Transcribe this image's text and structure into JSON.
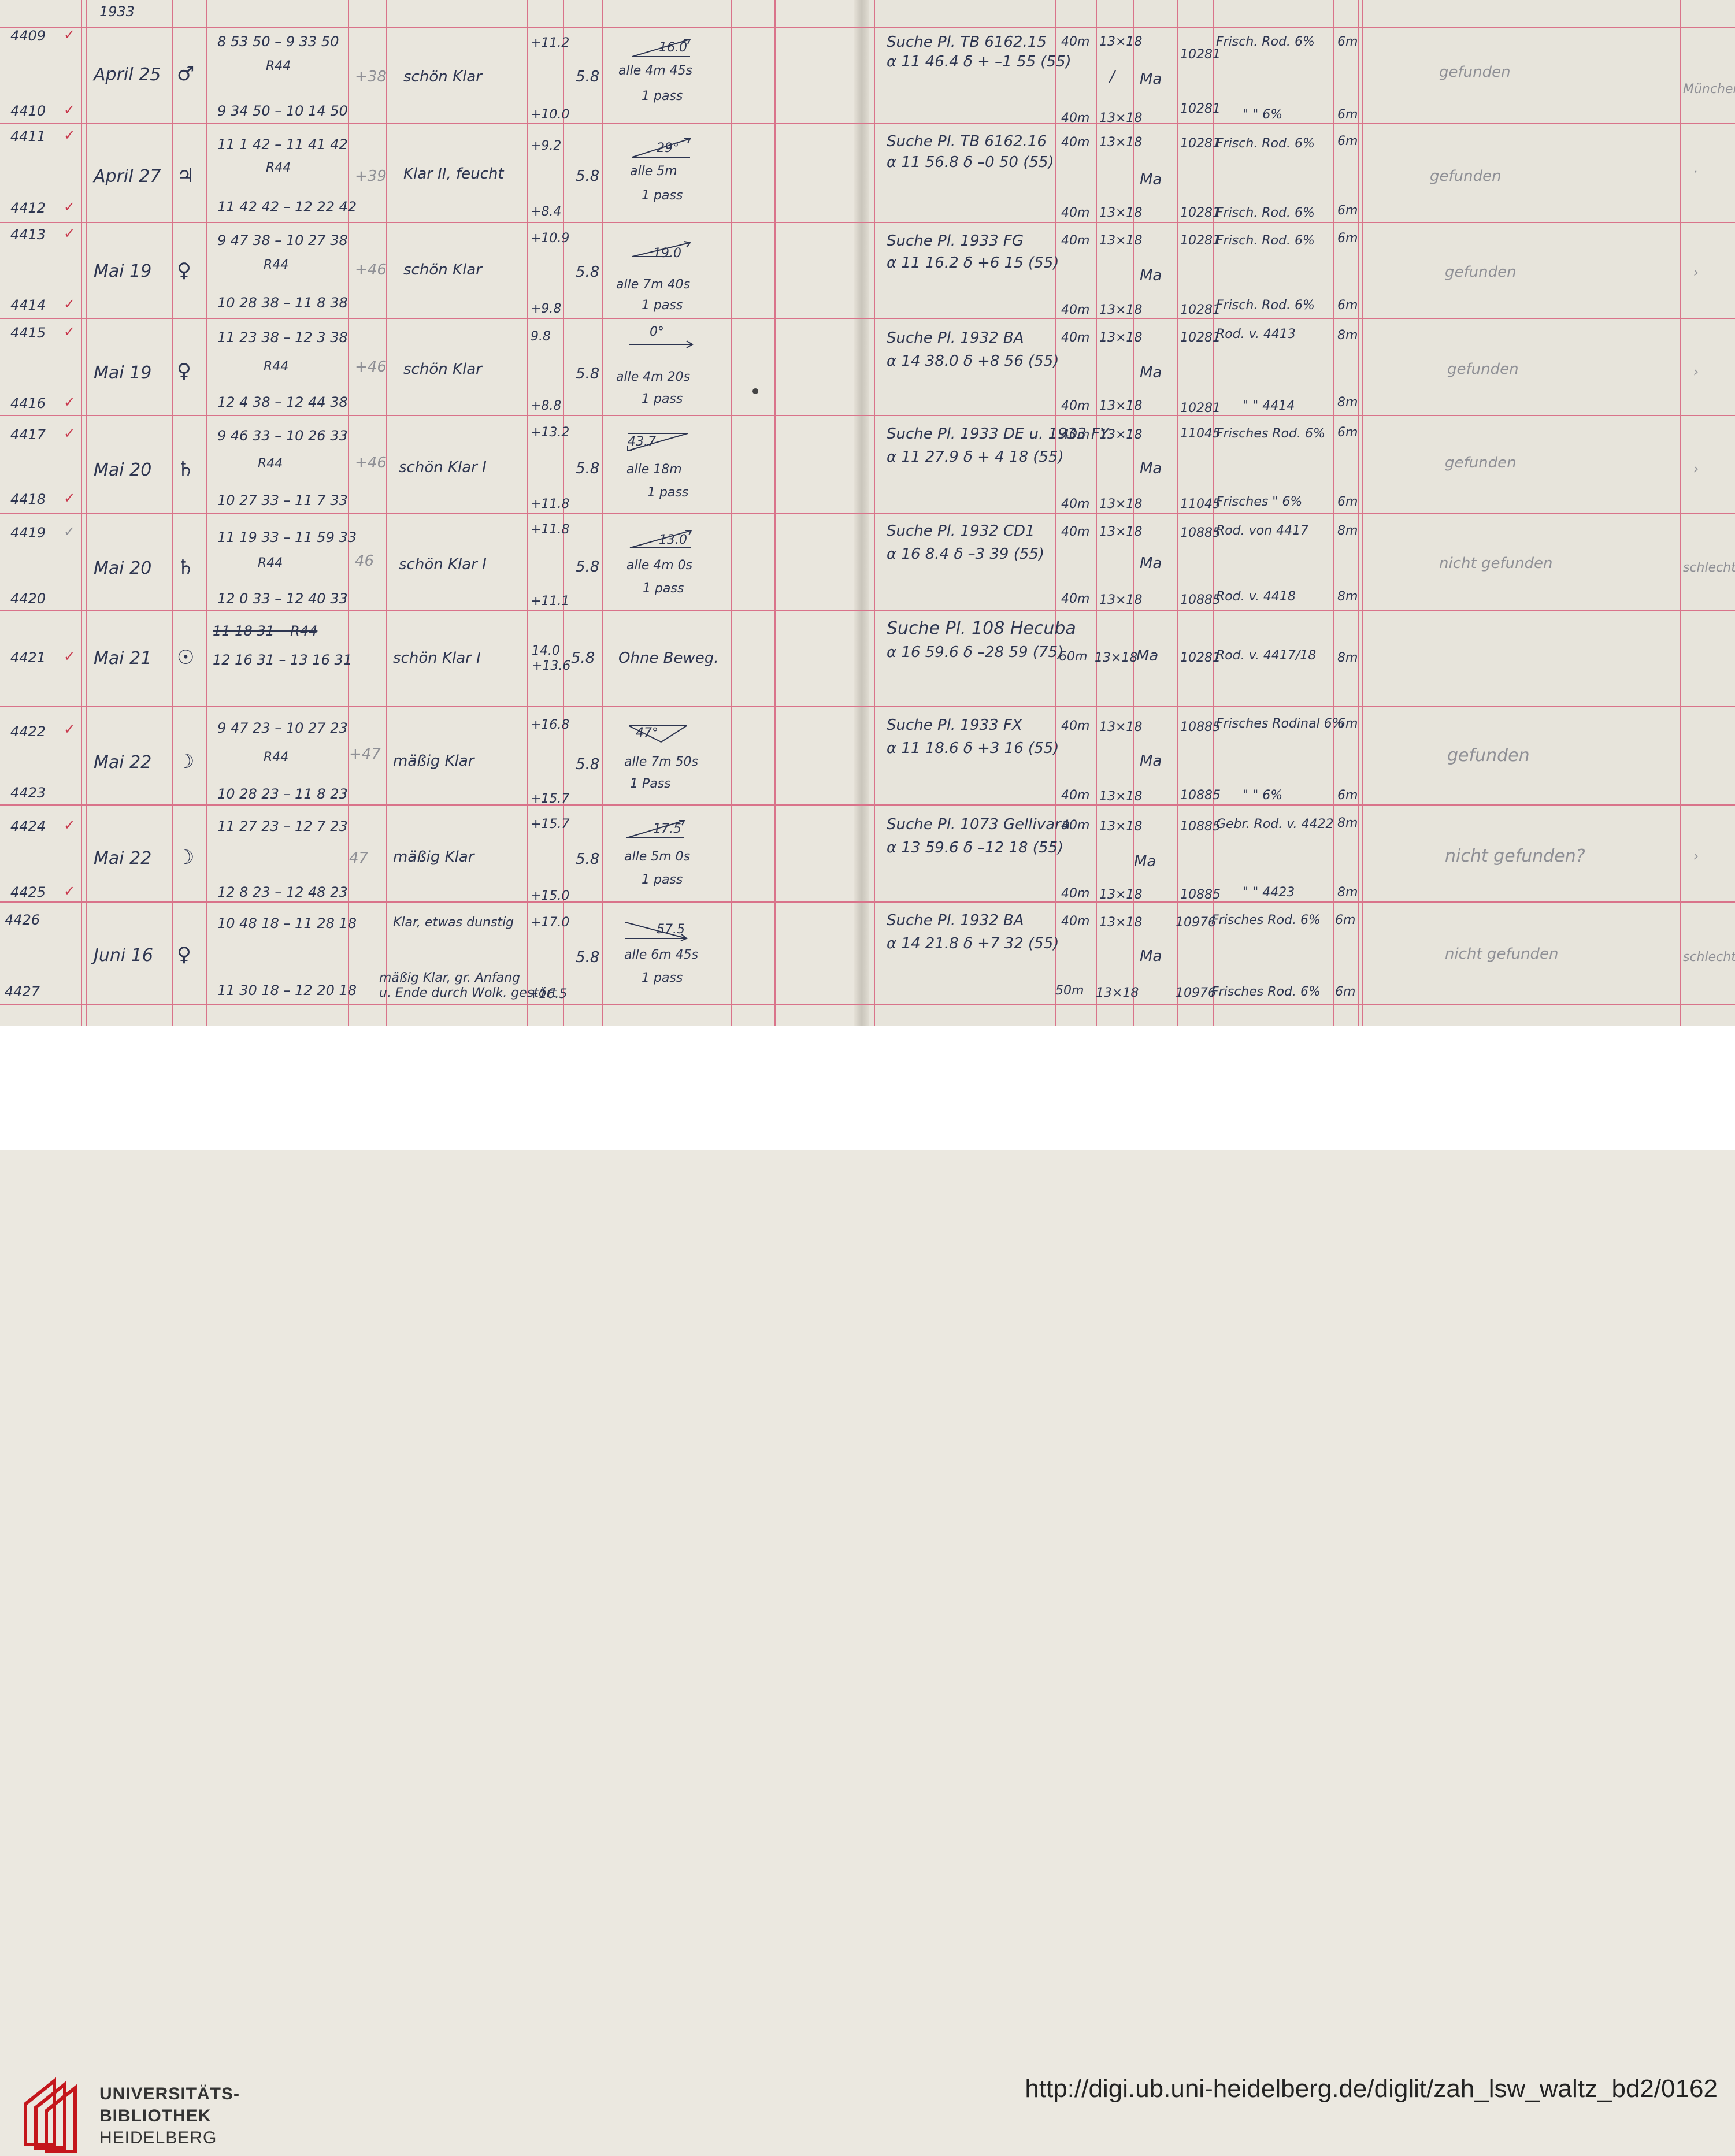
{
  "header": {
    "year": "1933"
  },
  "rows": [
    {
      "first_no": "4409",
      "second_no": "4410",
      "date": "April 25",
      "day_symbol": "♂",
      "time_first": "8 53 50 – 9 33 50",
      "instrument": "R44",
      "time_second": "9 34 50 – 10 14 50",
      "pencil_num": "+38",
      "conditions": "schön Klar",
      "temp_first": "+11.2",
      "temp_second": "+10.0",
      "mag": "5.8",
      "motion_angle": "16.0",
      "motion": "alle 4m 45s",
      "pairs": "1 pass",
      "search": "Suche Pl. TB 6162.15",
      "coords": "α 11 46.4  δ + –1 55 (55)",
      "exp_first": "40m",
      "exp_second": "40m",
      "size_first": "13×18",
      "size_second": "13×18",
      "observer": "Ma",
      "plate_first": "10281",
      "plate_second": "10281",
      "dev_first": "Frisch. Rod. 6%",
      "dev_second": "\"   \"  6%",
      "dur_first": "6m",
      "dur_second": "6m",
      "result": "gefunden",
      "remark": "München"
    },
    {
      "first_no": "4411",
      "second_no": "4412",
      "date": "April 27",
      "day_symbol": "♃",
      "time_first": "11 1 42 – 11 41 42",
      "instrument": "R44",
      "time_second": "11 42 42 – 12 22 42",
      "pencil_num": "+39",
      "conditions": "Klar II, feucht",
      "temp_first": "+9.2",
      "temp_second": "+8.4",
      "mag": "5.8",
      "motion_angle": "29°",
      "motion": "alle 5m",
      "pairs": "1 pass",
      "search": "Suche Pl. TB 6162.16",
      "coords": "α 11 56.8  δ –0 50 (55)",
      "exp_first": "40m",
      "exp_second": "40m",
      "size_first": "13×18",
      "size_second": "13×18",
      "observer": "Ma",
      "plate_first": "10281",
      "plate_second": "10281",
      "dev_first": "Frisch. Rod. 6%",
      "dev_second": "Frisch. Rod. 6%",
      "dur_first": "6m",
      "dur_second": "6m",
      "result": "gefunden",
      "remark": "·"
    },
    {
      "first_no": "4413",
      "second_no": "4414",
      "date": "Mai 19",
      "day_symbol": "♀",
      "time_first": "9 47 38 – 10 27 38",
      "instrument": "R44",
      "time_second": "10 28 38 – 11 8 38",
      "pencil_num": "+46",
      "conditions": "schön Klar",
      "temp_first": "+10.9",
      "temp_second": "+9.8",
      "mag": "5.8",
      "motion_angle": "19.0",
      "motion": "alle 7m 40s",
      "pairs": "1 pass",
      "search": "Suche Pl. 1933 FG",
      "coords": "α 11 16.2  δ +6 15 (55)",
      "exp_first": "40m",
      "exp_second": "40m",
      "size_first": "13×18",
      "size_second": "13×18",
      "observer": "Ma",
      "plate_first": "10281",
      "plate_second": "10281",
      "dev_first": "Frisch. Rod. 6%",
      "dev_second": "Frisch. Rod. 6%",
      "dur_first": "6m",
      "dur_second": "6m",
      "result": "gefunden",
      "remark": "›"
    },
    {
      "first_no": "4415",
      "second_no": "4416",
      "date": "Mai 19",
      "day_symbol": "♀",
      "time_first": "11 23 38 – 12 3 38",
      "instrument": "R44",
      "time_second": "12 4 38 – 12 44 38",
      "pencil_num": "+46",
      "conditions": "schön Klar",
      "temp_first": "9.8",
      "temp_second": "+8.8",
      "mag": "5.8",
      "motion_angle": "0°",
      "motion": "alle 4m 20s",
      "pairs": "1 pass",
      "search": "Suche Pl. 1932 BA",
      "coords": "α 14 38.0  δ +8 56 (55)",
      "exp_first": "40m",
      "exp_second": "40m",
      "size_first": "13×18",
      "size_second": "13×18",
      "observer": "Ma",
      "plate_first": "10281",
      "plate_second": "10281",
      "dev_first": "Rod. v. 4413",
      "dev_second": "\"  \"  4414",
      "dur_first": "8m",
      "dur_second": "8m",
      "result": "gefunden",
      "remark": "›"
    },
    {
      "first_no": "4417",
      "second_no": "4418",
      "date": "Mai 20",
      "day_symbol": "♄",
      "time_first": "9 46 33 – 10 26 33",
      "instrument": "R44",
      "time_second": "10 27 33 – 11 7 33",
      "pencil_num": "+46",
      "conditions": "schön Klar I",
      "temp_first": "+13.2",
      "temp_second": "+11.8",
      "mag": "5.8",
      "motion_angle": "43.7",
      "motion": "alle 18m",
      "pairs": "1 pass",
      "search": "Suche Pl. 1933 DE u. 1933 FY",
      "coords": "α 11 27.9  δ + 4 18 (55)",
      "exp_first": "40m",
      "exp_second": "40m",
      "size_first": "13×18",
      "size_second": "13×18",
      "observer": "Ma",
      "plate_first": "11045",
      "plate_second": "11045",
      "dev_first": "Frisches Rod. 6%",
      "dev_second": "Frisches \" 6%",
      "dur_first": "6m",
      "dur_second": "6m",
      "result": "gefunden",
      "remark": "›"
    },
    {
      "first_no": "4419",
      "second_no": "4420",
      "date": "Mai 20",
      "day_symbol": "♄",
      "time_first": "11 19 33 – 11 59 33",
      "instrument": "R44",
      "time_second": "12 0 33 – 12 40 33",
      "pencil_num": "46",
      "conditions": "schön Klar I",
      "temp_first": "+11.8",
      "temp_second": "+11.1",
      "mag": "5.8",
      "motion_angle": "13.0",
      "motion": "alle 4m 0s",
      "pairs": "1 pass",
      "search": "Suche Pl. 1932 CD1",
      "coords": "α 16 8.4  δ –3 39 (55)",
      "exp_first": "40m",
      "exp_second": "40m",
      "size_first": "13×18",
      "size_second": "13×18",
      "observer": "Ma",
      "plate_first": "10885",
      "plate_second": "10885",
      "dev_first": "Rod. von 4417",
      "dev_second": "Rod. v. 4418",
      "dur_first": "8m",
      "dur_second": "8m",
      "result": "nicht gefunden",
      "remark": "schlecht"
    },
    {
      "first_no": "4421",
      "date": "Mai 21",
      "day_symbol": "☉",
      "time_struck": "11 18 31 – R44",
      "time_first": "12 16 31 – 13 16 31",
      "conditions": "schön Klar I",
      "temp_first": "14.0",
      "temp_second": "+13.6",
      "mag": "5.8",
      "motion": "Ohne Beweg.",
      "search": "Suche Pl. 108 Hecuba",
      "coords": "α 16 59.6  δ –28 59 (75)",
      "exp_first": "60m",
      "size_first": "13×18",
      "observer": "Ma",
      "plate_first": "10281",
      "dev_first": "Rod. v. 4417/18",
      "dur_first": "8m"
    },
    {
      "first_no": "4422",
      "second_no": "4423",
      "date": "Mai 22",
      "day_symbol": "☽",
      "time_first": "9 47 23 – 10 27 23",
      "instrument": "R44",
      "time_second": "10 28 23 – 11 8 23",
      "pencil_num": "+47",
      "conditions": "mäßig Klar",
      "temp_first": "+16.8",
      "temp_second": "+15.7",
      "mag": "5.8",
      "motion_angle": "47°",
      "motion": "alle 7m 50s",
      "pairs": "1 Pass",
      "search": "Suche Pl. 1933 FX",
      "coords": "α 11 18.6  δ +3 16 (55)",
      "exp_first": "40m",
      "exp_second": "40m",
      "size_first": "13×18",
      "size_second": "13×18",
      "observer": "Ma",
      "plate_first": "10885",
      "plate_second": "10885",
      "dev_first": "Frisches Rodinal 6%",
      "dev_second": "\"   \"  6%",
      "dur_first": "6m",
      "dur_second": "6m",
      "result": "gefunden"
    },
    {
      "first_no": "4424",
      "second_no": "4425",
      "date": "Mai 22",
      "day_symbol": "☽",
      "time_first": "11 27 23 – 12 7 23",
      "time_second": "12 8 23 – 12 48 23",
      "pencil_num": "47",
      "conditions": "mäßig Klar",
      "temp_first": "+15.7",
      "temp_second": "+15.0",
      "mag": "5.8",
      "motion_angle": "17.5",
      "motion": "alle 5m 0s",
      "pairs": "1 pass",
      "search": "Suche Pl. 1073 Gellivara",
      "coords": "α 13 59.6  δ –12 18 (55)",
      "exp_first": "40m",
      "exp_second": "40m",
      "size_first": "13×18",
      "size_second": "13×18",
      "observer": "Ma",
      "plate_first": "10885",
      "plate_second": "10885",
      "dev_first": "Gebr. Rod. v. 4422",
      "dev_second": "\"   \" 4423",
      "dur_first": "8m",
      "dur_second": "8m",
      "result": "nicht gefunden?",
      "remark": "›"
    },
    {
      "first_no": "4426",
      "second_no": "4427",
      "date": "Juni 16",
      "day_symbol": "♀",
      "time_first": "10 48 18 – 11 28 18",
      "time_second": "11 30 18 – 12 20 18",
      "conditions": "Klar, etwas dunstig",
      "conditions_second": "mäßig Klar, gr. Anfang",
      "conditions_third": "u. Ende durch Wolk. gestört",
      "temp_first": "+17.0",
      "temp_second": "+16.5",
      "mag": "5.8",
      "motion_angle": "57.5",
      "motion": "alle 6m 45s",
      "pairs": "1 pass",
      "search": "Suche Pl. 1932 BA",
      "coords": "α 14 21.8  δ +7 32 (55)",
      "exp_first": "40m",
      "exp_second": "50m",
      "size_first": "13×18",
      "size_second": "13×18",
      "observer": "Ma",
      "plate_first": "10976",
      "plate_second": "10976",
      "dev_first": "Frisches Rod. 6%",
      "dev_second": "Frisches Rod. 6%",
      "dur_first": "6m",
      "dur_second": "6m",
      "result": "nicht gefunden",
      "remark": "schlecht"
    }
  ],
  "footer": {
    "logo_line1": "UNIVERSITÄTS-",
    "logo_line2": "BIBLIOTHEK",
    "logo_line3": "HEIDELBERG",
    "url": "http://digi.ub.uni-heidelberg.de/diglit/zah_lsw_waltz_bd2/0162"
  },
  "colors": {
    "rule": "#d9738a",
    "ink": "#2d3550",
    "check": "#c8364b",
    "paper": "#e9e6dd",
    "logo_red": "#c4161c"
  }
}
